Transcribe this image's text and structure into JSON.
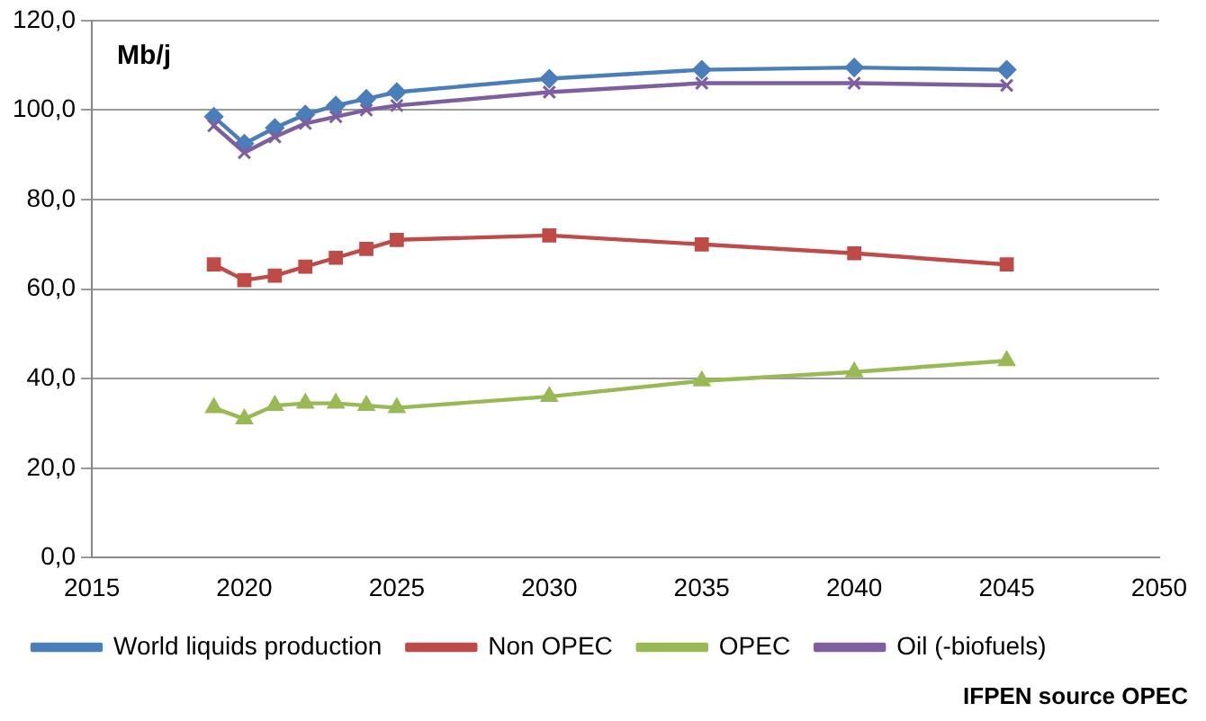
{
  "chart_data": {
    "type": "line",
    "ylabel": "Mb/j",
    "annotations": [
      "IFPEN source OPEC"
    ],
    "x": [
      2019,
      2020,
      2021,
      2022,
      2023,
      2024,
      2025,
      2030,
      2035,
      2040,
      2045
    ],
    "series": [
      {
        "name": "World liquids production",
        "color": "#4a7ebb",
        "marker": "diamond",
        "values": [
          98.5,
          92.5,
          96,
          99,
          101,
          102.5,
          104,
          107,
          109,
          109.5,
          109
        ]
      },
      {
        "name": "Non OPEC",
        "color": "#be4b48",
        "marker": "square",
        "values": [
          65.5,
          62,
          63,
          65,
          67,
          69,
          71,
          72,
          70,
          68,
          65.5
        ]
      },
      {
        "name": "OPEC",
        "color": "#98b954",
        "marker": "triangle",
        "values": [
          33.5,
          31,
          34,
          34.5,
          34.5,
          34,
          33.5,
          36,
          39.5,
          41.5,
          44
        ]
      },
      {
        "name": "Oil (-biofuels)",
        "color": "#7d5fa0",
        "marker": "cross",
        "values": [
          96.5,
          90.5,
          94,
          97,
          98.5,
          100,
          101,
          104,
          106,
          106,
          105.5
        ]
      }
    ],
    "xlim": [
      2015,
      2050
    ],
    "xticks": [
      2015,
      2020,
      2025,
      2030,
      2035,
      2040,
      2045,
      2050
    ],
    "ylim": [
      0,
      120
    ],
    "yticks": [
      {
        "value": 0,
        "label": "0,0"
      },
      {
        "value": 20,
        "label": "20,0"
      },
      {
        "value": 40,
        "label": "40,0"
      },
      {
        "value": 60,
        "label": "60,0"
      },
      {
        "value": 80,
        "label": "80,0"
      },
      {
        "value": 100,
        "label": "100,0"
      },
      {
        "value": 120,
        "label": "120,0"
      }
    ],
    "grid": "y",
    "legend": "bottom"
  }
}
